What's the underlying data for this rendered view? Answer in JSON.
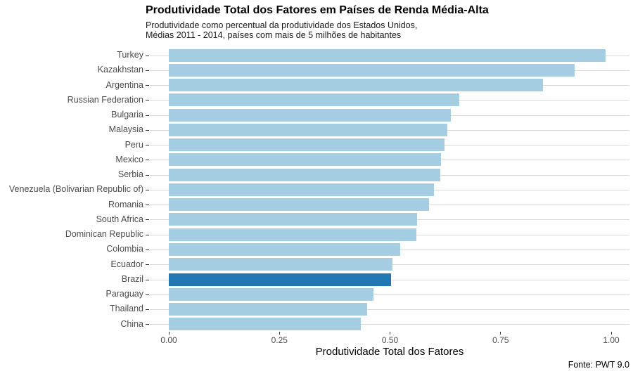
{
  "header": {
    "title": "Produtividade Total dos Fatores em Países de Renda Média-Alta",
    "subtitle_line1": "Produtividade como percentual da produtividade dos Estados Unidos,",
    "subtitle_line2": "Médias 2011 - 2014, países com mais de 5 milhões de habitantes"
  },
  "footer": {
    "caption": "Fonte: PWT 9.0"
  },
  "chart_data": {
    "type": "bar",
    "orientation": "horizontal",
    "title": "Produtividade Total dos Fatores em Países de Renda Média-Alta",
    "subtitle": "Produtividade como percentual da produtividade dos Estados Unidos, Médias 2011 - 2014, países com mais de 5 milhões de habitantes",
    "xlabel": "Produtividade Total dos Fatores",
    "ylabel": "",
    "caption": "Fonte: PWT 9.0",
    "xlim": [
      0.0,
      1.0
    ],
    "x_ticks": [
      {
        "value": 0.0,
        "label": "0.00"
      },
      {
        "value": 0.25,
        "label": "0.25"
      },
      {
        "value": 0.5,
        "label": "0.50"
      },
      {
        "value": 0.75,
        "label": "0.75"
      },
      {
        "value": 1.0,
        "label": "1.00"
      }
    ],
    "grid": "horizontal-only",
    "legend": "none",
    "categories": [
      "Turkey",
      "Kazakhstan",
      "Argentina",
      "Russian Federation",
      "Bulgaria",
      "Malaysia",
      "Peru",
      "Mexico",
      "Serbia",
      "Venezuela (Bolivarian Republic of)",
      "Romania",
      "South Africa",
      "Dominican Republic",
      "Colombia",
      "Ecuador",
      "Brazil",
      "Paraguay",
      "Thailand",
      "China"
    ],
    "values": [
      0.987,
      0.917,
      0.846,
      0.657,
      0.638,
      0.629,
      0.623,
      0.615,
      0.613,
      0.599,
      0.589,
      0.561,
      0.559,
      0.523,
      0.505,
      0.502,
      0.463,
      0.448,
      0.434
    ],
    "highlight_category": "Brazil",
    "bar_color": "#a6cee3",
    "highlight_color": "#2176b4",
    "gridline_color": "#d9d9d9",
    "tick_color": "#333333",
    "axis_text_color": "#4d4d4d"
  }
}
